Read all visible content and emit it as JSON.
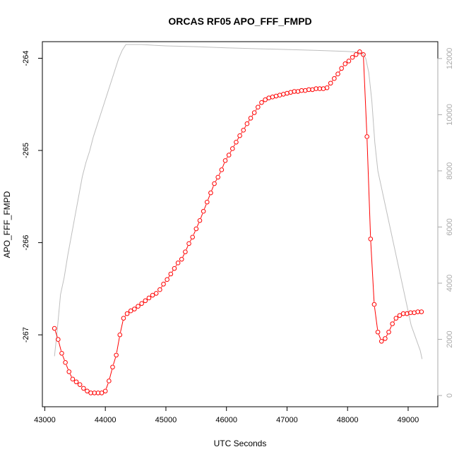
{
  "chart_data": {
    "type": "line",
    "title": "ORCAS RF05 APO_FFF_FMPD",
    "xlabel": "UTC Seconds",
    "ylabel": "APO_FFF_FMPD",
    "xlim": [
      42960,
      49490
    ],
    "ylim": [
      -267.78,
      -263.82
    ],
    "y2lim": [
      -400,
      12600
    ],
    "x_ticks": [
      43000,
      44000,
      45000,
      46000,
      47000,
      48000,
      49000
    ],
    "y_ticks": [
      -267,
      -266,
      -265,
      -264
    ],
    "y2_ticks": [
      0,
      2000,
      4000,
      6000,
      8000,
      10000,
      12000
    ],
    "colors": {
      "series": "#ff0000",
      "altitude": "#bebebe",
      "axis": "#000000",
      "right_axis": "#aaaaaa"
    },
    "series": [
      {
        "x": [
          43160,
          43220,
          43280,
          43340,
          43400,
          43460,
          43520,
          43580,
          43640,
          43700,
          43760,
          43820,
          43880,
          43940,
          44000,
          44060,
          44120,
          44180,
          44240,
          44300,
          44360,
          44420,
          44480,
          44540,
          44600,
          44660,
          44720,
          44780,
          44840,
          44900,
          44960,
          45020,
          45080,
          45140,
          45200,
          45260,
          45320,
          45380,
          45440,
          45500,
          45560,
          45620,
          45680,
          45740,
          45800,
          45860,
          45920,
          45980,
          46040,
          46100,
          46160,
          46220,
          46280,
          46340,
          46400,
          46460,
          46520,
          46580,
          46640,
          46700,
          46760,
          46820,
          46880,
          46940,
          47000,
          47060,
          47120,
          47180,
          47240,
          47300,
          47360,
          47420,
          47480,
          47540,
          47600,
          47660,
          47720,
          47780,
          47840,
          47900,
          47960,
          48020,
          48080,
          48140,
          48200,
          48260,
          48320,
          48380,
          48440,
          48500,
          48560,
          48620,
          48680,
          48740,
          48800,
          48860,
          48920,
          48980,
          49040,
          49100,
          49160,
          49220
        ],
        "values": [
          -266.93,
          -267.05,
          -267.2,
          -267.3,
          -267.4,
          -267.48,
          -267.51,
          -267.54,
          -267.58,
          -267.61,
          -267.63,
          -267.63,
          -267.63,
          -267.63,
          -267.61,
          -267.5,
          -267.35,
          -267.22,
          -267.0,
          -266.82,
          -266.77,
          -266.74,
          -266.72,
          -266.69,
          -266.66,
          -266.63,
          -266.6,
          -266.57,
          -266.55,
          -266.51,
          -266.45,
          -266.4,
          -266.34,
          -266.28,
          -266.22,
          -266.18,
          -266.1,
          -266.01,
          -265.94,
          -265.85,
          -265.76,
          -265.66,
          -265.56,
          -265.46,
          -265.36,
          -265.29,
          -265.21,
          -265.11,
          -265.05,
          -264.98,
          -264.91,
          -264.84,
          -264.78,
          -264.71,
          -264.65,
          -264.59,
          -264.53,
          -264.48,
          -264.45,
          -264.43,
          -264.42,
          -264.41,
          -264.4,
          -264.39,
          -264.38,
          -264.37,
          -264.36,
          -264.36,
          -264.35,
          -264.35,
          -264.34,
          -264.34,
          -264.33,
          -264.33,
          -264.33,
          -264.32,
          -264.27,
          -264.22,
          -264.17,
          -264.11,
          -264.06,
          -264.03,
          -263.99,
          -263.96,
          -263.93,
          -263.96,
          -264.85,
          -265.96,
          -266.67,
          -266.97,
          -267.07,
          -267.04,
          -266.97,
          -266.88,
          -266.82,
          -266.79,
          -266.77,
          -266.77,
          -266.76,
          -266.76,
          -266.75,
          -266.75
        ]
      },
      {
        "axis": "right",
        "x": [
          43160,
          43200,
          43260,
          43320,
          43380,
          43440,
          43500,
          43560,
          43620,
          43680,
          43740,
          43800,
          43860,
          43920,
          43980,
          44040,
          44100,
          44160,
          44220,
          44280,
          44340,
          44400,
          44600,
          44800,
          45000,
          45500,
          46000,
          46500,
          47000,
          47500,
          48000,
          48150,
          48250,
          48300,
          48350,
          48400,
          48450,
          48500,
          48550,
          48600,
          48650,
          48700,
          48750,
          48800,
          48850,
          48900,
          48950,
          49000,
          49050,
          49100,
          49150,
          49200,
          49230
        ],
        "values": [
          1400,
          2200,
          3600,
          4200,
          5000,
          5700,
          6400,
          7100,
          7800,
          8300,
          8700,
          9200,
          9600,
          10000,
          10400,
          10800,
          11200,
          11600,
          12000,
          12300,
          12500,
          12500,
          12500,
          12470,
          12450,
          12420,
          12380,
          12350,
          12320,
          12290,
          12250,
          12230,
          12180,
          12000,
          11500,
          10500,
          9000,
          8000,
          7500,
          7000,
          6500,
          6000,
          5500,
          5000,
          4500,
          4000,
          3500,
          3000,
          2500,
          2200,
          1900,
          1600,
          1300
        ]
      }
    ]
  }
}
